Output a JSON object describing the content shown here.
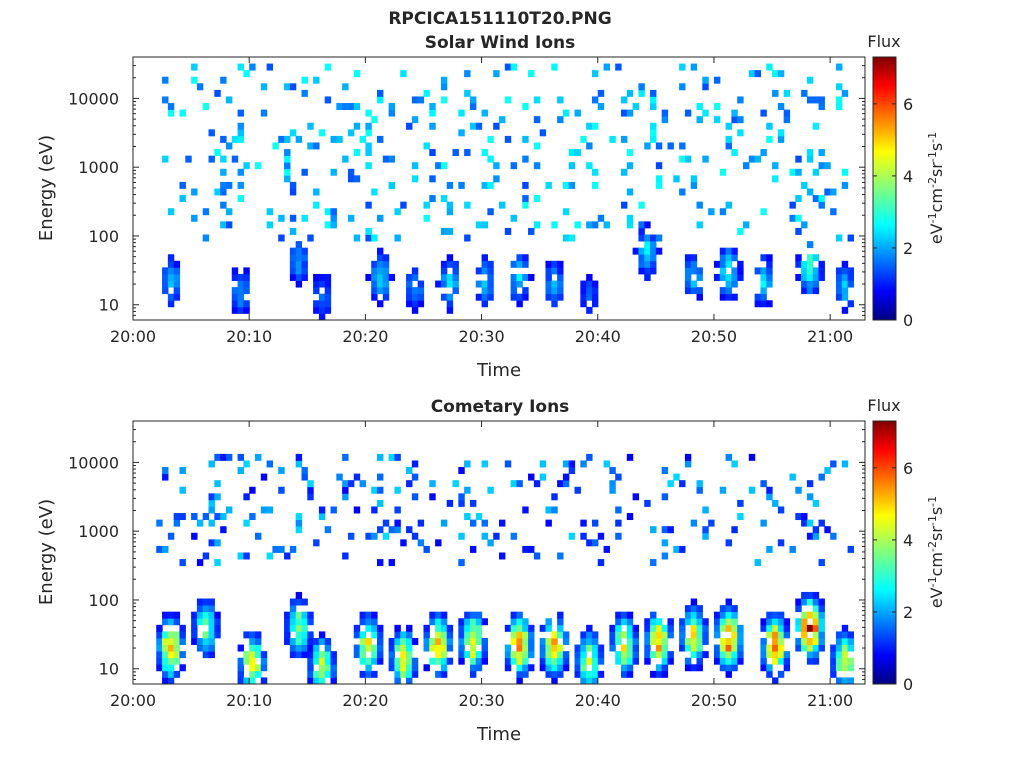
{
  "figure": {
    "title": "RPCICA151110T20.PNG"
  },
  "chart_data": [
    {
      "type": "heatmap",
      "title": "Solar Wind Ions",
      "xlabel": "Time",
      "ylabel": "Energy (eV)",
      "x_ticks": [
        "20:00",
        "20:10",
        "20:20",
        "20:30",
        "20:40",
        "20:50",
        "21:00"
      ],
      "x_range": [
        "20:00",
        "21:03"
      ],
      "y_scale": "log",
      "y_ticks": [
        10,
        100,
        1000,
        10000
      ],
      "y_tick_labels": [
        "10",
        "100",
        "1000",
        "10000"
      ],
      "y_range": [
        6,
        40000
      ],
      "colorbar": {
        "title": "Flux",
        "label": "eV-1cm-2sr-1s-1",
        "range": [
          0,
          7.3
        ],
        "ticks": [
          "0",
          "2",
          "4",
          "6"
        ],
        "colormap": "jet"
      },
      "bursts": [
        {
          "t": "20:03",
          "e": 22,
          "v": 2.2
        },
        {
          "t": "20:09",
          "e": 16,
          "v": 2.0
        },
        {
          "t": "20:14",
          "e": 45,
          "v": 2.0
        },
        {
          "t": "20:16",
          "e": 14,
          "v": 1.8
        },
        {
          "t": "20:21",
          "e": 25,
          "v": 2.5
        },
        {
          "t": "20:24",
          "e": 18,
          "v": 2.0
        },
        {
          "t": "20:27",
          "e": 20,
          "v": 2.5
        },
        {
          "t": "20:30",
          "e": 22,
          "v": 2.2
        },
        {
          "t": "20:33",
          "e": 25,
          "v": 2.5
        },
        {
          "t": "20:36",
          "e": 20,
          "v": 2.0
        },
        {
          "t": "20:39",
          "e": 14,
          "v": 1.5
        },
        {
          "t": "20:44",
          "e": 60,
          "v": 2.5
        },
        {
          "t": "20:48",
          "e": 25,
          "v": 2.2
        },
        {
          "t": "20:51",
          "e": 30,
          "v": 2.8
        },
        {
          "t": "20:54",
          "e": 22,
          "v": 2.5
        },
        {
          "t": "20:58",
          "e": 35,
          "v": 3.3
        },
        {
          "t": "21:01",
          "e": 18,
          "v": 2.2
        }
      ],
      "diffuse": {
        "e_min": 80,
        "e_max": 35000,
        "v_min": 1.4,
        "v_max": 2.9
      }
    },
    {
      "type": "heatmap",
      "title": "Cometary Ions",
      "xlabel": "Time",
      "ylabel": "Energy (eV)",
      "x_ticks": [
        "20:00",
        "20:10",
        "20:20",
        "20:30",
        "20:40",
        "20:50",
        "21:00"
      ],
      "x_range": [
        "20:00",
        "21:03"
      ],
      "y_scale": "log",
      "y_ticks": [
        10,
        100,
        1000,
        10000
      ],
      "y_tick_labels": [
        "10",
        "100",
        "1000",
        "10000"
      ],
      "y_range": [
        6,
        40000
      ],
      "colorbar": {
        "title": "Flux",
        "label": "eV-1cm-2sr-1s-1",
        "range": [
          0,
          7.3
        ],
        "ticks": [
          "0",
          "2",
          "4",
          "6"
        ],
        "colormap": "jet"
      },
      "bursts": [
        {
          "t": "20:03",
          "e": 20,
          "v": 5.2
        },
        {
          "t": "20:06",
          "e": 40,
          "v": 3.5
        },
        {
          "t": "20:10",
          "e": 12,
          "v": 4.6
        },
        {
          "t": "20:14",
          "e": 40,
          "v": 3.8
        },
        {
          "t": "20:16",
          "e": 11,
          "v": 4.2
        },
        {
          "t": "20:20",
          "e": 22,
          "v": 4.5
        },
        {
          "t": "20:23",
          "e": 14,
          "v": 4.5
        },
        {
          "t": "20:26",
          "e": 22,
          "v": 5.0
        },
        {
          "t": "20:29",
          "e": 25,
          "v": 4.8
        },
        {
          "t": "20:33",
          "e": 22,
          "v": 5.3
        },
        {
          "t": "20:36",
          "e": 22,
          "v": 5.0
        },
        {
          "t": "20:39",
          "e": 13,
          "v": 4.2
        },
        {
          "t": "20:42",
          "e": 22,
          "v": 4.5
        },
        {
          "t": "20:45",
          "e": 25,
          "v": 5.0
        },
        {
          "t": "20:48",
          "e": 30,
          "v": 4.5
        },
        {
          "t": "20:51",
          "e": 28,
          "v": 5.8
        },
        {
          "t": "20:55",
          "e": 22,
          "v": 5.5
        },
        {
          "t": "20:58",
          "e": 40,
          "v": 6.5
        },
        {
          "t": "21:01",
          "e": 13,
          "v": 4.2
        }
      ],
      "diffuse": {
        "e_min": 300,
        "e_max": 12000,
        "v_min": 0.8,
        "v_max": 2.5
      }
    }
  ]
}
